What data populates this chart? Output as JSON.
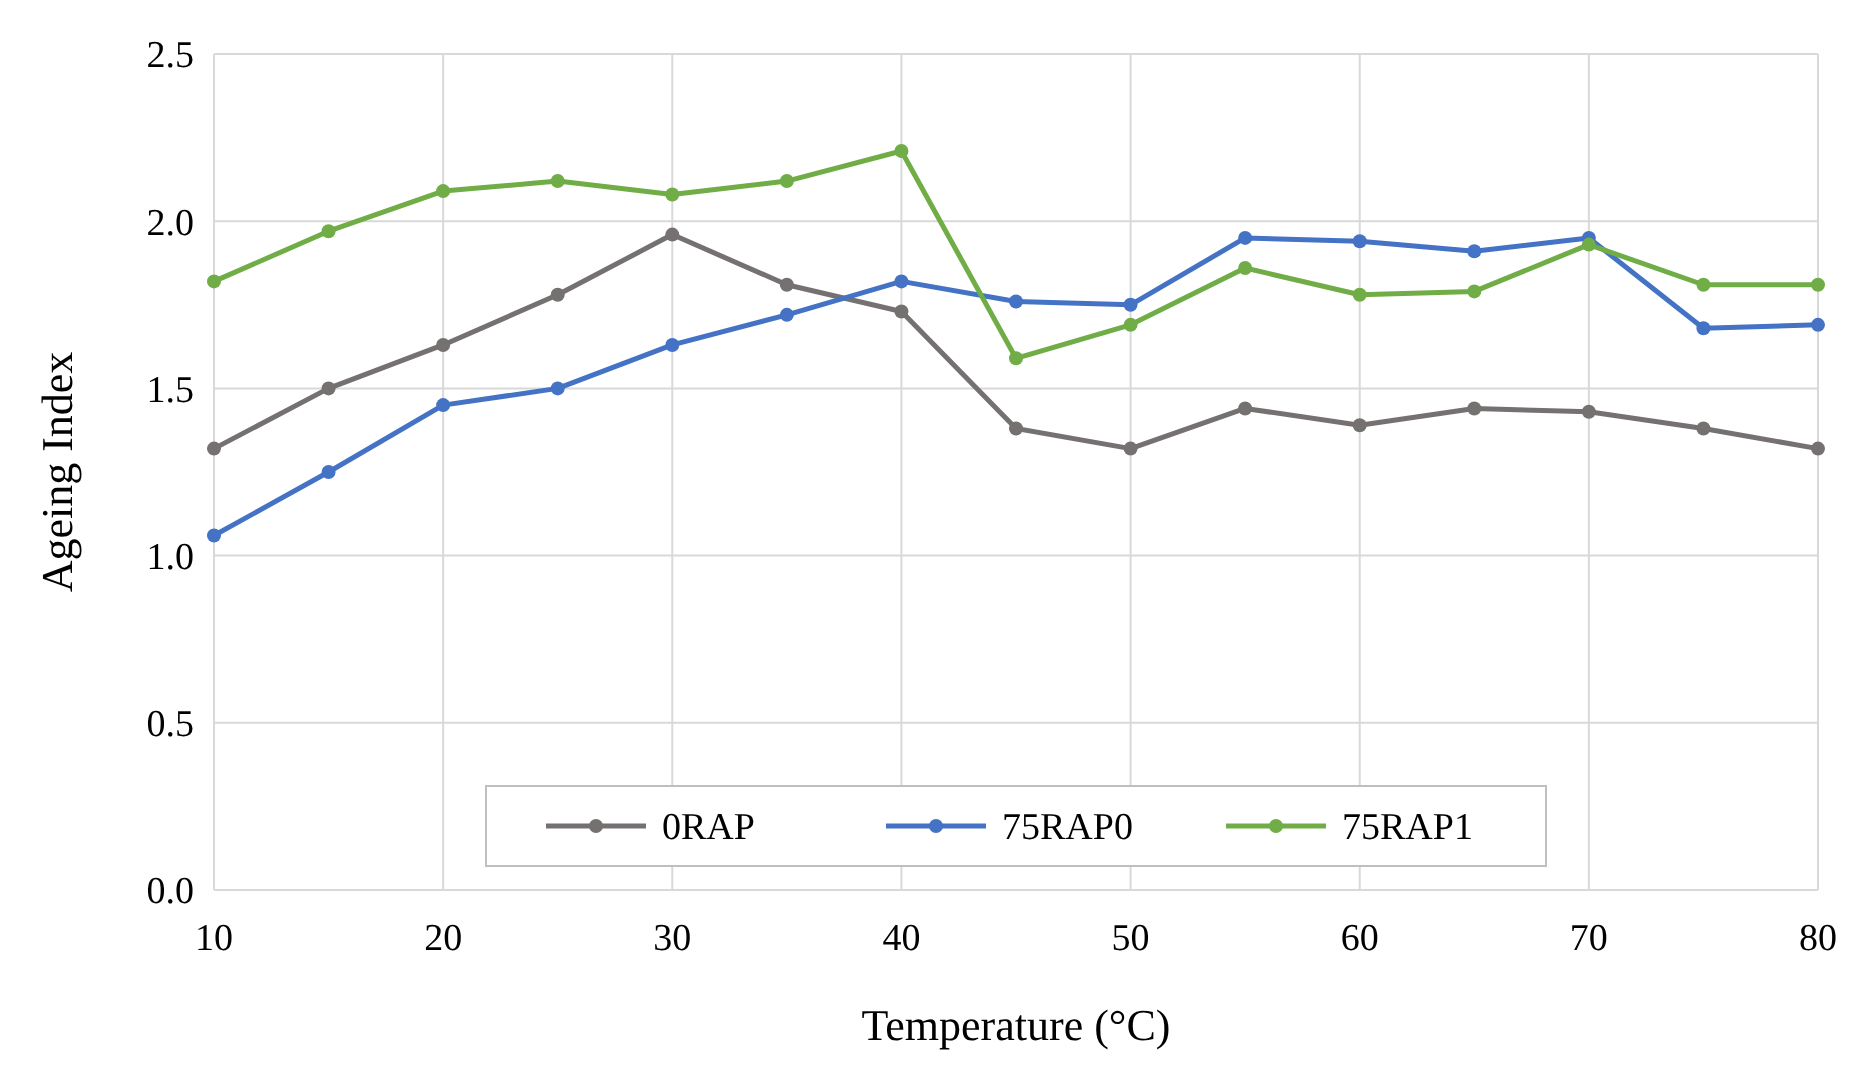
{
  "chart_data": {
    "type": "line",
    "xlabel": "Temperature (°C)",
    "ylabel": "Ageing Index",
    "x": [
      10,
      15,
      20,
      25,
      30,
      35,
      40,
      45,
      50,
      55,
      60,
      65,
      70,
      75,
      80
    ],
    "series": [
      {
        "name": "0RAP",
        "color": "#767171",
        "values": [
          1.32,
          1.5,
          1.63,
          1.78,
          1.96,
          1.81,
          1.73,
          1.38,
          1.32,
          1.44,
          1.39,
          1.44,
          1.43,
          1.38,
          1.32
        ]
      },
      {
        "name": "75RAP0",
        "color": "#4472c4",
        "values": [
          1.06,
          1.25,
          1.45,
          1.5,
          1.63,
          1.72,
          1.82,
          1.76,
          1.75,
          1.95,
          1.94,
          1.91,
          1.95,
          1.68,
          1.69
        ]
      },
      {
        "name": "75RAP1",
        "color": "#70ad47",
        "values": [
          1.82,
          1.97,
          2.09,
          2.12,
          2.08,
          2.12,
          2.21,
          1.59,
          1.69,
          1.86,
          1.78,
          1.79,
          1.93,
          1.81,
          1.81
        ]
      }
    ],
    "xlim": [
      10,
      80
    ],
    "xticks": [
      10,
      20,
      30,
      40,
      50,
      60,
      70,
      80
    ],
    "ylim": [
      0,
      2.5
    ],
    "yticks": [
      {
        "value": 0,
        "label": "0.0"
      },
      {
        "value": 0.5,
        "label": "0.5"
      },
      {
        "value": 1,
        "label": "1.0"
      },
      {
        "value": 1.5,
        "label": "1.5"
      },
      {
        "value": 2,
        "label": "2.0"
      },
      {
        "value": 2.5,
        "label": "2.5"
      }
    ],
    "grid": true,
    "legend": "bottom",
    "marker": "circle",
    "line_style": "solid"
  }
}
